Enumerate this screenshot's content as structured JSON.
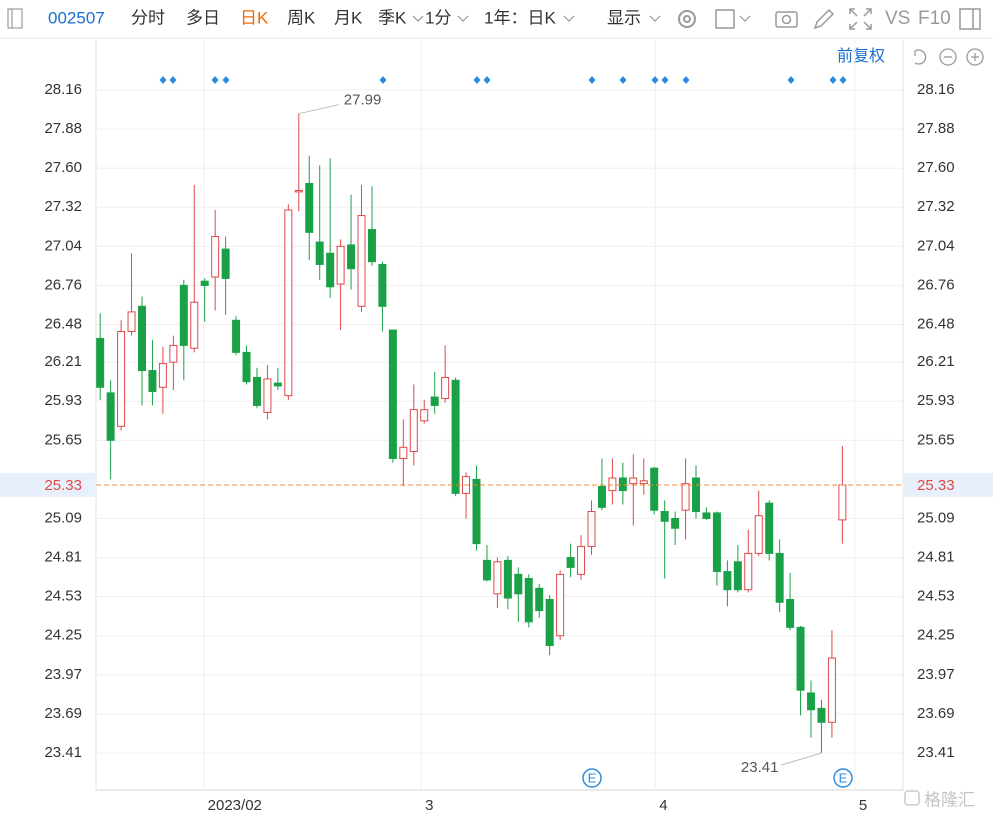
{
  "toolbar": {
    "code": "002507",
    "tabs": [
      "分时",
      "多日",
      "日K",
      "周K",
      "月K",
      "季K",
      "1分"
    ],
    "period": "1年：日K",
    "display": "显示",
    "vs": "VS",
    "f10": "F10"
  },
  "adjust": "前复权",
  "event_label": "E",
  "watermark": "格隆汇",
  "chart_data": {
    "type": "candlestick",
    "x": [
      0,
      1,
      2,
      3,
      4,
      5,
      6,
      7,
      8,
      9,
      10,
      11,
      12,
      13,
      14,
      15,
      16,
      17,
      18,
      19,
      20,
      21,
      22,
      23,
      24,
      25,
      26,
      27,
      28,
      29,
      30,
      31,
      32,
      33,
      34,
      35,
      36,
      37,
      38,
      39,
      40,
      41,
      42,
      43,
      44,
      45,
      46,
      47,
      48,
      49,
      50,
      51,
      52,
      53,
      54,
      55,
      56,
      57,
      58,
      59,
      60,
      61,
      62,
      63,
      64,
      65,
      66,
      67,
      68,
      69,
      70,
      71
    ],
    "open": [
      26.38,
      25.99,
      25.75,
      26.43,
      26.61,
      26.15,
      26.03,
      26.21,
      26.76,
      26.31,
      26.79,
      26.82,
      27.02,
      26.51,
      26.28,
      26.1,
      25.85,
      26.06,
      25.97,
      27.43,
      27.49,
      27.07,
      26.99,
      26.77,
      27.05,
      26.61,
      27.16,
      26.91,
      26.44,
      25.52,
      25.57,
      25.79,
      25.96,
      25.95,
      26.08,
      25.27,
      25.37,
      24.79,
      24.55,
      24.79,
      24.69,
      24.66,
      24.59,
      24.51,
      24.25,
      24.81,
      24.69,
      24.89,
      25.32,
      25.29,
      25.38,
      25.34,
      25.34,
      25.45,
      25.14,
      25.09,
      25.15,
      25.38,
      25.13,
      25.13,
      24.71,
      24.78,
      24.58,
      24.84,
      25.2,
      24.84,
      24.51,
      24.31,
      23.84,
      23.73,
      23.63,
      25.08
    ],
    "high": [
      26.56,
      26.08,
      26.51,
      26.99,
      26.68,
      26.37,
      26.32,
      26.4,
      26.8,
      27.48,
      26.81,
      27.3,
      27.11,
      26.54,
      26.33,
      26.17,
      26.19,
      26.17,
      27.34,
      27.99,
      27.69,
      27.62,
      27.67,
      27.09,
      27.41,
      27.48,
      27.47,
      26.93,
      26.44,
      25.8,
      26.05,
      25.94,
      26.14,
      26.33,
      26.1,
      25.42,
      25.47,
      24.9,
      24.81,
      24.82,
      24.74,
      24.69,
      24.62,
      24.54,
      24.72,
      24.91,
      24.97,
      25.22,
      25.52,
      25.52,
      25.49,
      25.55,
      25.52,
      25.46,
      25.22,
      25.14,
      25.52,
      25.47,
      25.17,
      25.14,
      24.79,
      24.9,
      25.01,
      25.29,
      25.22,
      24.94,
      24.7,
      24.32,
      23.93,
      23.79,
      24.29,
      25.61
    ],
    "low": [
      25.94,
      25.37,
      25.72,
      26.4,
      25.9,
      25.9,
      25.84,
      26.01,
      26.08,
      26.28,
      26.5,
      26.58,
      26.55,
      26.26,
      26.05,
      25.88,
      25.8,
      26.01,
      25.94,
      27.29,
      26.94,
      26.8,
      26.67,
      26.44,
      26.73,
      26.57,
      26.9,
      26.43,
      25.49,
      25.32,
      25.47,
      25.77,
      25.84,
      25.92,
      25.25,
      25.09,
      24.86,
      24.64,
      24.45,
      24.44,
      24.35,
      24.31,
      24.38,
      24.11,
      24.22,
      24.67,
      24.65,
      24.83,
      25.15,
      25.19,
      25.19,
      25.04,
      25.26,
      25.12,
      24.66,
      24.9,
      24.94,
      25.09,
      25.08,
      24.61,
      24.46,
      24.56,
      24.56,
      24.82,
      24.79,
      24.42,
      24.29,
      23.68,
      23.52,
      23.41,
      23.52,
      24.91
    ],
    "close": [
      26.03,
      25.65,
      26.43,
      26.57,
      26.15,
      26.0,
      26.2,
      26.33,
      26.33,
      26.64,
      26.76,
      27.11,
      26.81,
      26.28,
      26.07,
      25.9,
      26.09,
      26.04,
      27.3,
      27.44,
      27.14,
      26.91,
      26.75,
      27.04,
      26.88,
      27.26,
      26.93,
      26.61,
      25.52,
      25.6,
      25.87,
      25.87,
      25.9,
      26.1,
      25.27,
      25.39,
      24.91,
      24.65,
      24.78,
      24.52,
      24.55,
      24.35,
      24.43,
      24.18,
      24.69,
      24.74,
      24.89,
      25.14,
      25.17,
      25.38,
      25.29,
      25.38,
      25.36,
      25.15,
      25.07,
      25.02,
      25.34,
      25.14,
      25.09,
      24.71,
      24.58,
      24.58,
      24.84,
      25.11,
      24.84,
      24.49,
      24.31,
      23.86,
      23.72,
      23.63,
      24.09,
      25.33
    ],
    "up_color": "#e04848",
    "down_color": "#1aa148",
    "ylim": [
      23.145,
      28.303
    ],
    "yticks": [
      28.16,
      27.88,
      {
        "value": 27.6,
        "label": "27.60"
      },
      27.32,
      27.04,
      26.76,
      26.48,
      26.21,
      25.93,
      25.65,
      25.09,
      24.81,
      24.53,
      24.25,
      23.97,
      23.69,
      23.41
    ],
    "xlim": [
      -0.4,
      76.8
    ],
    "xticks": [
      {
        "value": 9.9,
        "label": "2023/02"
      },
      {
        "value": 30.7,
        "label": "3"
      },
      {
        "value": 53.1,
        "label": "4"
      },
      {
        "value": 72.2,
        "label": "5"
      }
    ],
    "grid": true,
    "last_price": 25.33,
    "last_color": "#f08a3c",
    "annotations": [
      {
        "x": 19,
        "value": 27.99
      },
      {
        "x": 69,
        "value": 23.41
      }
    ]
  }
}
